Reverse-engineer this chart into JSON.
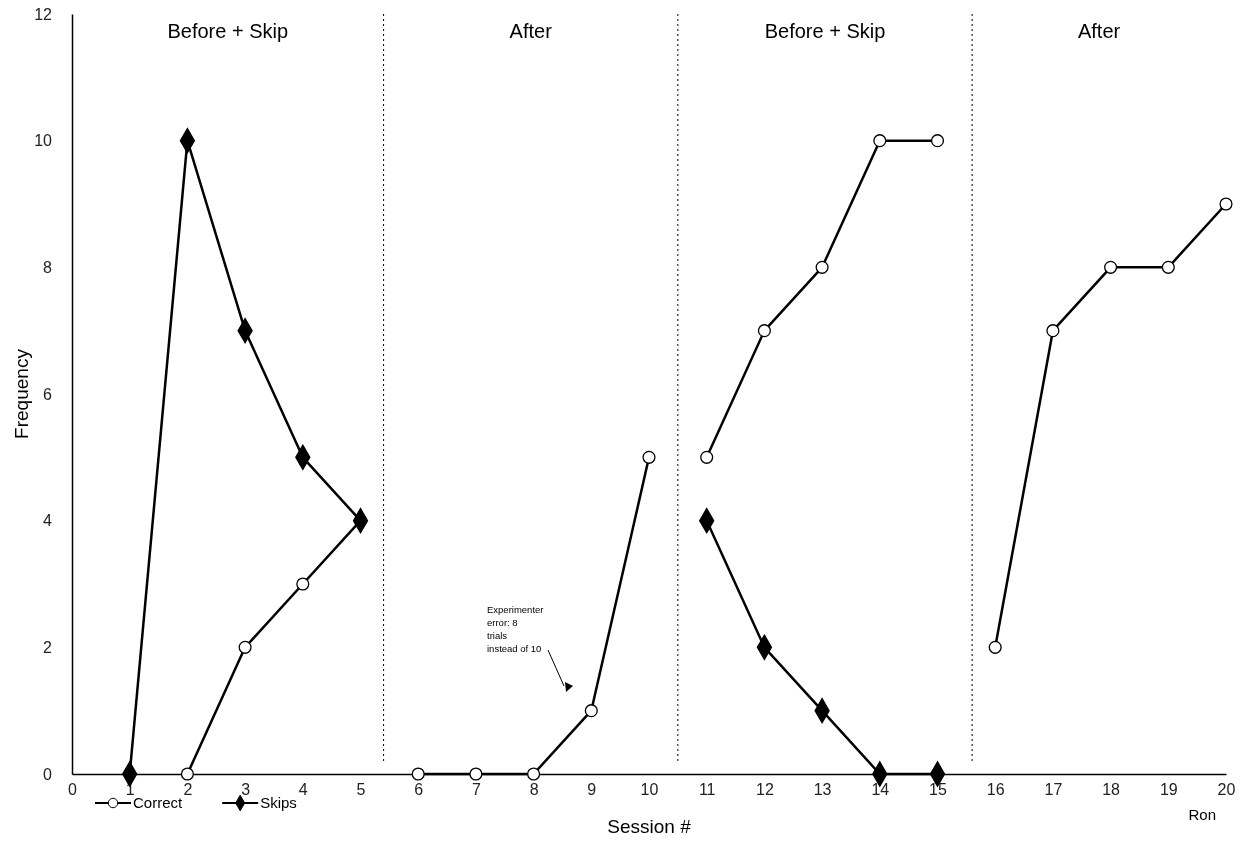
{
  "chart_data": {
    "type": "line",
    "xlabel": "Session #",
    "ylabel": "Frequency",
    "x": [
      1,
      2,
      3,
      4,
      5,
      6,
      7,
      8,
      9,
      10,
      11,
      12,
      13,
      14,
      15,
      16,
      17,
      18,
      19,
      20
    ],
    "series": [
      {
        "name": "Correct",
        "color": "#000000",
        "marker": "circle",
        "values": [
          null,
          0,
          2,
          3,
          4,
          0,
          0,
          0,
          1,
          5,
          5,
          7,
          8,
          10,
          10,
          2,
          7,
          8,
          8,
          9
        ]
      },
      {
        "name": "Skips",
        "color": "#000000",
        "marker": "diamond",
        "values": [
          0,
          10,
          7,
          5,
          4,
          null,
          null,
          null,
          null,
          null,
          4,
          2,
          1,
          0,
          0,
          null,
          null,
          null,
          null,
          null
        ]
      }
    ],
    "xlim": [
      0,
      20
    ],
    "xticks": [
      0,
      1,
      2,
      3,
      4,
      5,
      6,
      7,
      8,
      9,
      10,
      11,
      12,
      13,
      14,
      15,
      16,
      17,
      18,
      19,
      20
    ],
    "ylim": [
      0,
      12
    ],
    "yticks": [
      0,
      2,
      4,
      6,
      8,
      10,
      12
    ],
    "grid": false,
    "legend": "bottom left",
    "line_style": "solid",
    "ref_lines": [
      {
        "axis": "x",
        "value": 5.4,
        "color": "#000000",
        "line_style": "dotted"
      },
      {
        "axis": "x",
        "value": 10.5,
        "color": "#000000",
        "line_style": "dotted"
      },
      {
        "axis": "x",
        "value": 15.6,
        "color": "#000000",
        "line_style": "dotted"
      }
    ],
    "annotations": [
      "Before + Skip",
      "After",
      "Before + Skip",
      "After",
      "Experimenter error: 8 trials instead of 10",
      "Ron"
    ]
  }
}
